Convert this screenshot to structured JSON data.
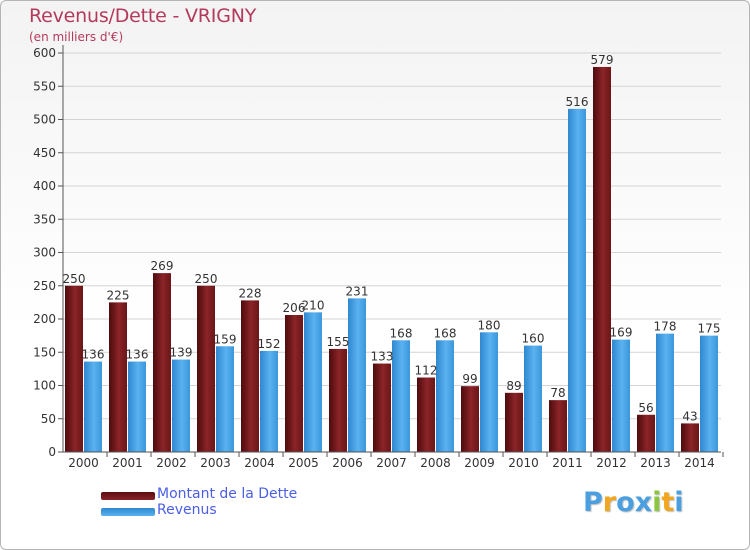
{
  "title": "Revenus/Dette - VRIGNY",
  "subtitle": "(en milliers d'€)",
  "colors": {
    "dette": "#7a1a1e",
    "revenus": "#3d9be0",
    "title": "#b43a5c",
    "legend_text": "#4b5ee6"
  },
  "legend": [
    {
      "label": "Montant de la Dette",
      "color": "#7a1a1e"
    },
    {
      "label": "Revenus",
      "color": "#3d9be0"
    }
  ],
  "logo": {
    "text": "Proxiti"
  },
  "chart_data": {
    "type": "bar",
    "categories": [
      "2000",
      "2001",
      "2002",
      "2003",
      "2004",
      "2005",
      "2006",
      "2007",
      "2008",
      "2009",
      "2010",
      "2011",
      "2012",
      "2013",
      "2014"
    ],
    "series": [
      {
        "name": "Montant de la Dette",
        "values": [
          250,
          225,
          269,
          250,
          228,
          206,
          155,
          133,
          112,
          99,
          89,
          78,
          579,
          56,
          43
        ]
      },
      {
        "name": "Revenus",
        "values": [
          136,
          136,
          139,
          159,
          152,
          210,
          231,
          168,
          168,
          180,
          160,
          516,
          169,
          178,
          175
        ]
      }
    ],
    "ylim": [
      0,
      600
    ],
    "yticks": [
      0,
      50,
      100,
      150,
      200,
      250,
      300,
      350,
      400,
      450,
      500,
      550,
      600
    ],
    "grid": true
  }
}
